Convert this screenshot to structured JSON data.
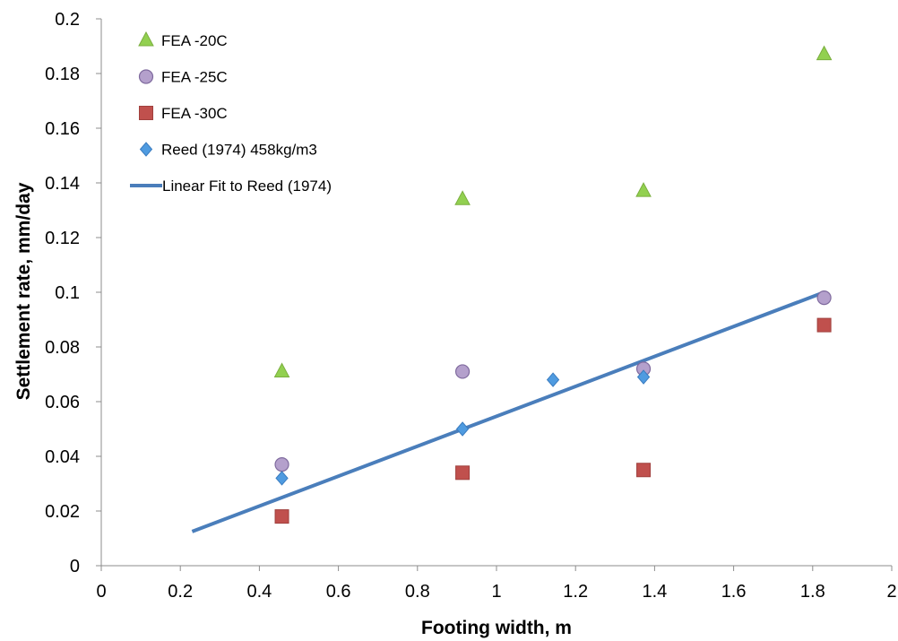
{
  "chart_data": {
    "type": "scatter",
    "title": "",
    "xlabel": "Footing width, m",
    "ylabel": "Settlement rate, mm/day",
    "xlim": [
      0,
      2
    ],
    "ylim": [
      0,
      0.2
    ],
    "x_ticks": [
      "0",
      "0.2",
      "0.4",
      "0.6",
      "0.8",
      "1",
      "1.2",
      "1.4",
      "1.6",
      "1.8",
      "2"
    ],
    "y_ticks": [
      "0",
      "0.02",
      "0.04",
      "0.06",
      "0.08",
      "0.1",
      "0.12",
      "0.14",
      "0.16",
      "0.18",
      "0.2"
    ],
    "grid": false,
    "legend_position": "top-left",
    "series": [
      {
        "name": "FEA -20C",
        "marker": "triangle",
        "color": "#92D050",
        "stroke": "#7AAE3E",
        "points": [
          [
            0.457,
            0.071
          ],
          [
            0.914,
            0.134
          ],
          [
            1.372,
            0.137
          ],
          [
            1.829,
            0.187
          ]
        ]
      },
      {
        "name": "FEA -25C",
        "marker": "circle",
        "color": "#B4A0CC",
        "stroke": "#7F6A9E",
        "points": [
          [
            0.457,
            0.037
          ],
          [
            0.914,
            0.071
          ],
          [
            1.372,
            0.072
          ],
          [
            1.829,
            0.098
          ]
        ]
      },
      {
        "name": "FEA -30C",
        "marker": "square",
        "color": "#C0504D",
        "stroke": "#A0403D",
        "points": [
          [
            0.457,
            0.018
          ],
          [
            0.914,
            0.034
          ],
          [
            1.372,
            0.035
          ],
          [
            1.829,
            0.088
          ]
        ]
      },
      {
        "name": "Reed (1974) 458kg/m3",
        "marker": "diamond",
        "color": "#4F9BE0",
        "stroke": "#3A7CC0",
        "points": [
          [
            0.457,
            0.032
          ],
          [
            0.914,
            0.05
          ],
          [
            1.143,
            0.068
          ],
          [
            1.372,
            0.069
          ]
        ]
      },
      {
        "name": "Linear Fit to Reed (1974)",
        "marker": "line",
        "color": "#4A7EBB",
        "points": [
          [
            0.23,
            0.0125
          ],
          [
            1.829,
            0.1
          ]
        ]
      }
    ]
  }
}
